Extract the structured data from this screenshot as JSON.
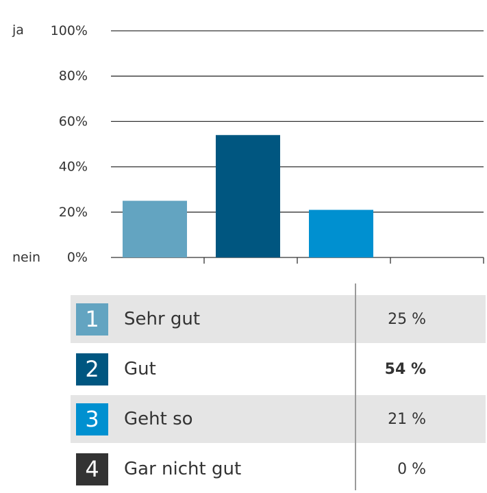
{
  "chart_data": {
    "type": "bar",
    "categories": [
      "1",
      "2",
      "3",
      "4"
    ],
    "values": [
      25,
      54,
      21,
      0
    ],
    "colors": [
      "#63a4c1",
      "#005680",
      "#0090d0",
      "#333333"
    ],
    "yticks": [
      "0%",
      "20%",
      "40%",
      "60%",
      "80%",
      "100%"
    ],
    "ylim": [
      0,
      100
    ],
    "y_top_label": "ja",
    "y_bottom_label": "nein",
    "grid": true
  },
  "legend": [
    {
      "num": "1",
      "label": "Sehr gut",
      "value": "25 %",
      "color": "#63a4c1",
      "shaded": true,
      "bold": false
    },
    {
      "num": "2",
      "label": "Gut",
      "value": "54 %",
      "color": "#005680",
      "shaded": false,
      "bold": true
    },
    {
      "num": "3",
      "label": "Geht so",
      "value": "21 %",
      "color": "#0090d0",
      "shaded": true,
      "bold": false
    },
    {
      "num": "4",
      "label": "Gar nicht gut",
      "value": "0 %",
      "color": "#333333",
      "shaded": false,
      "bold": false
    }
  ]
}
